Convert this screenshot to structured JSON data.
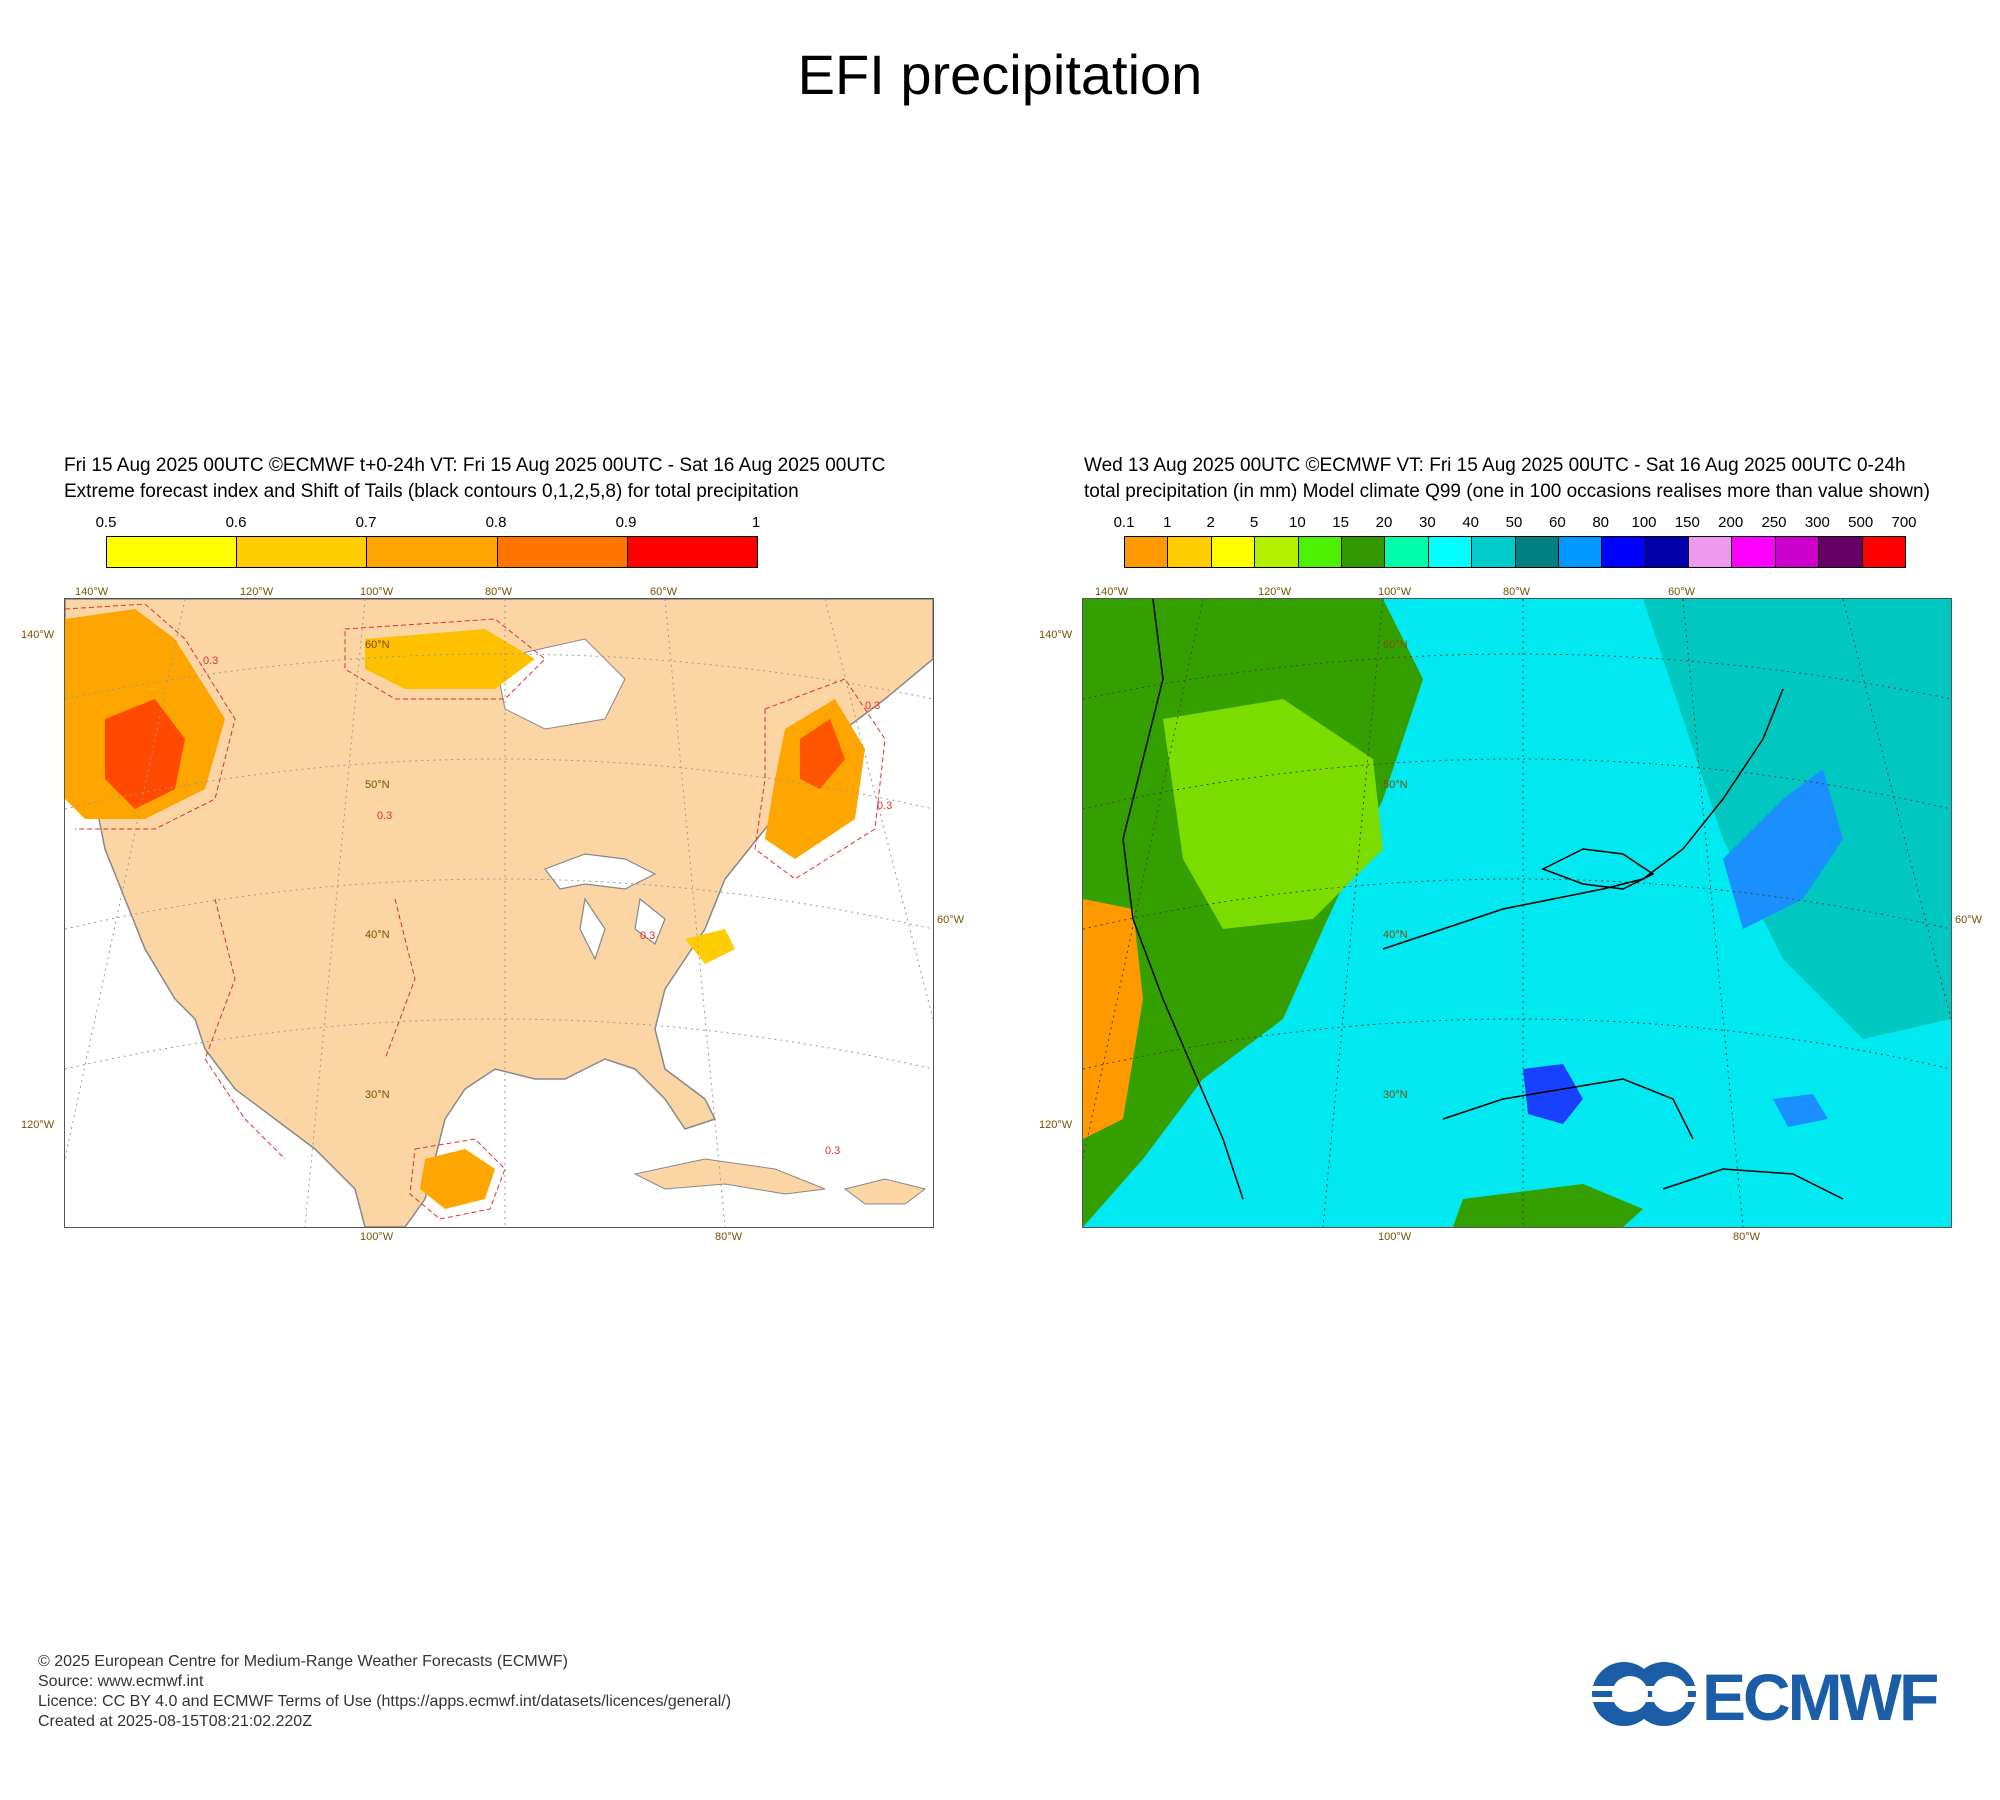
{
  "title": "EFI precipitation",
  "left_panel": {
    "header_line1": "Fri 15 Aug 2025 00UTC ©ECMWF t+0-24h  VT: Fri 15 Aug 2025 00UTC - Sat 16 Aug 2025 00UTC",
    "header_line2": "Extreme forecast index and Shift of Tails (black contours 0,1,2,5,8) for total precipitation",
    "colorbar_ticks": [
      "0.5",
      "0.6",
      "0.7",
      "0.8",
      "0.9",
      "1"
    ],
    "colorbar_colors": [
      "#ffff00",
      "#ffcc00",
      "#ffa500",
      "#ff7400",
      "#ff0000"
    ],
    "contour_label": "0.3",
    "map_colors": {
      "land": "#fcd5a5",
      "efi_mid": "#ffa500",
      "efi_high": "#ff3b00",
      "contour": "#e03030"
    }
  },
  "right_panel": {
    "header_line1": "Wed 13 Aug 2025 00UTC ©ECMWF VT: Fri 15 Aug 2025 00UTC - Sat 16 Aug 2025 00UTC   0-24h",
    "header_line2": "total precipitation (in mm)  Model climate Q99 (one in 100 occasions realises more than value shown)",
    "colorbar_ticks": [
      "0.1",
      "1",
      "2",
      "5",
      "10",
      "15",
      "20",
      "30",
      "40",
      "50",
      "60",
      "80",
      "100",
      "150",
      "200",
      "250",
      "300",
      "500",
      "700"
    ],
    "colorbar_colors": [
      "#ff9900",
      "#ffcc00",
      "#ffff00",
      "#b3f000",
      "#4cf000",
      "#339900",
      "#00ffaa",
      "#00ffff",
      "#00cccc",
      "#008080",
      "#0099ff",
      "#0000ff",
      "#0000aa",
      "#ee99ee",
      "#ff00ff",
      "#cc00cc",
      "#660066",
      "#ff0000"
    ],
    "map_colors": {
      "green": "#33a000",
      "lime": "#6ed800",
      "teal": "#00d0c0",
      "cyan": "#00f0ff",
      "blue": "#0080ff",
      "orange": "#ff9900"
    }
  },
  "map_labels": {
    "top": [
      "140°W",
      "120°W",
      "100°W",
      "80°W",
      "60°W"
    ],
    "left": [
      "140°W",
      "120°W"
    ],
    "right": [
      "60°W"
    ],
    "bottom": [
      "100°W",
      "80°W"
    ],
    "lat": [
      "60°N",
      "50°N",
      "40°N",
      "30°N"
    ]
  },
  "footer": {
    "copyright": "© 2025 European Centre for Medium-Range Weather Forecasts (ECMWF)",
    "source": "Source: www.ecmwf.int",
    "licence": "Licence: CC BY 4.0 and ECMWF Terms of Use (https://apps.ecmwf.int/datasets/licences/general/)",
    "created": "Created at 2025-08-15T08:21:02.220Z"
  },
  "logo": {
    "text": "ECMWF",
    "color": "#1b5da6"
  }
}
